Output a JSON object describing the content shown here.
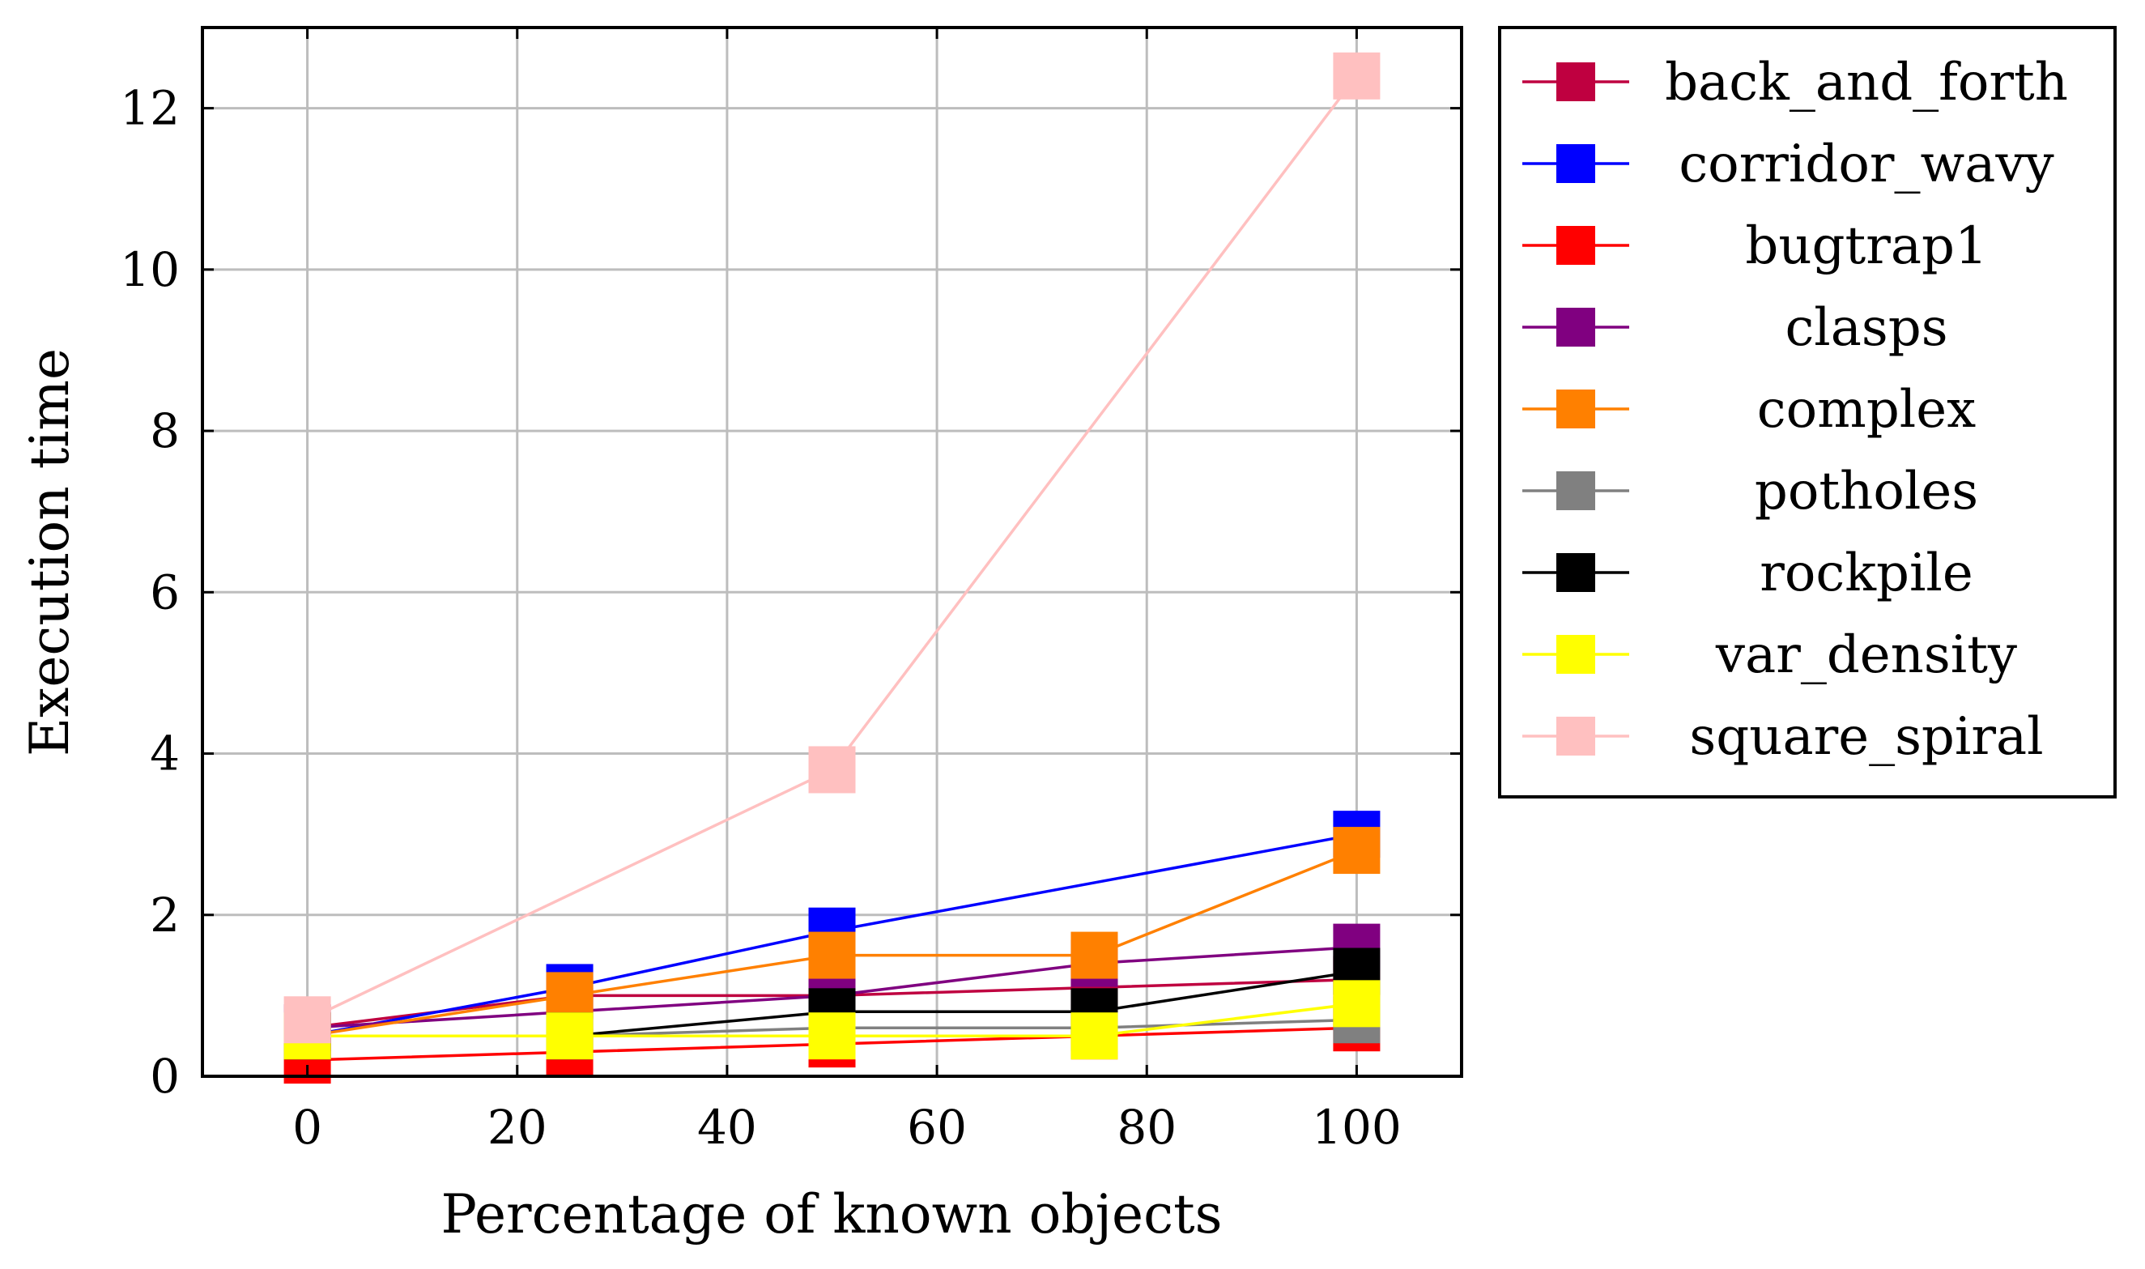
{
  "chart_data": {
    "type": "line",
    "title": "",
    "xlabel": "Percentage of known objects",
    "ylabel": "Execution time",
    "xlim": [
      -10,
      110
    ],
    "ylim": [
      0,
      13
    ],
    "xticks": [
      0,
      20,
      40,
      60,
      80,
      100
    ],
    "yticks": [
      0,
      2,
      4,
      6,
      8,
      10,
      12
    ],
    "grid": true,
    "legend_position": "outside-right-top",
    "x": [
      0,
      25,
      50,
      75,
      100
    ],
    "series": [
      {
        "name": "back_and_forth",
        "color": "#bf0040",
        "values": [
          0.6,
          1.0,
          1.0,
          1.1,
          1.2
        ]
      },
      {
        "name": "corridor_wavy",
        "color": "#0000ff",
        "values": [
          0.5,
          1.1,
          1.8,
          null,
          3.0
        ]
      },
      {
        "name": "bugtrap1",
        "color": "#ff0000",
        "values": [
          0.2,
          0.3,
          0.4,
          0.5,
          0.6
        ]
      },
      {
        "name": "clasps",
        "color": "#800080",
        "values": [
          0.6,
          0.8,
          1.0,
          1.4,
          1.6
        ]
      },
      {
        "name": "complex",
        "color": "#ff8000",
        "values": [
          0.5,
          1.0,
          1.5,
          1.5,
          2.8
        ]
      },
      {
        "name": "potholes",
        "color": "#808080",
        "values": [
          0.5,
          0.5,
          0.6,
          0.6,
          0.7
        ]
      },
      {
        "name": "rockpile",
        "color": "#000000",
        "values": [
          0.5,
          0.5,
          0.8,
          0.8,
          1.3
        ]
      },
      {
        "name": "var_density",
        "color": "#ffff00",
        "values": [
          0.5,
          0.5,
          0.5,
          0.5,
          0.9
        ]
      },
      {
        "name": "square_spiral",
        "color": "#ffc0c0",
        "values": [
          0.7,
          null,
          3.8,
          null,
          12.4
        ]
      }
    ]
  }
}
